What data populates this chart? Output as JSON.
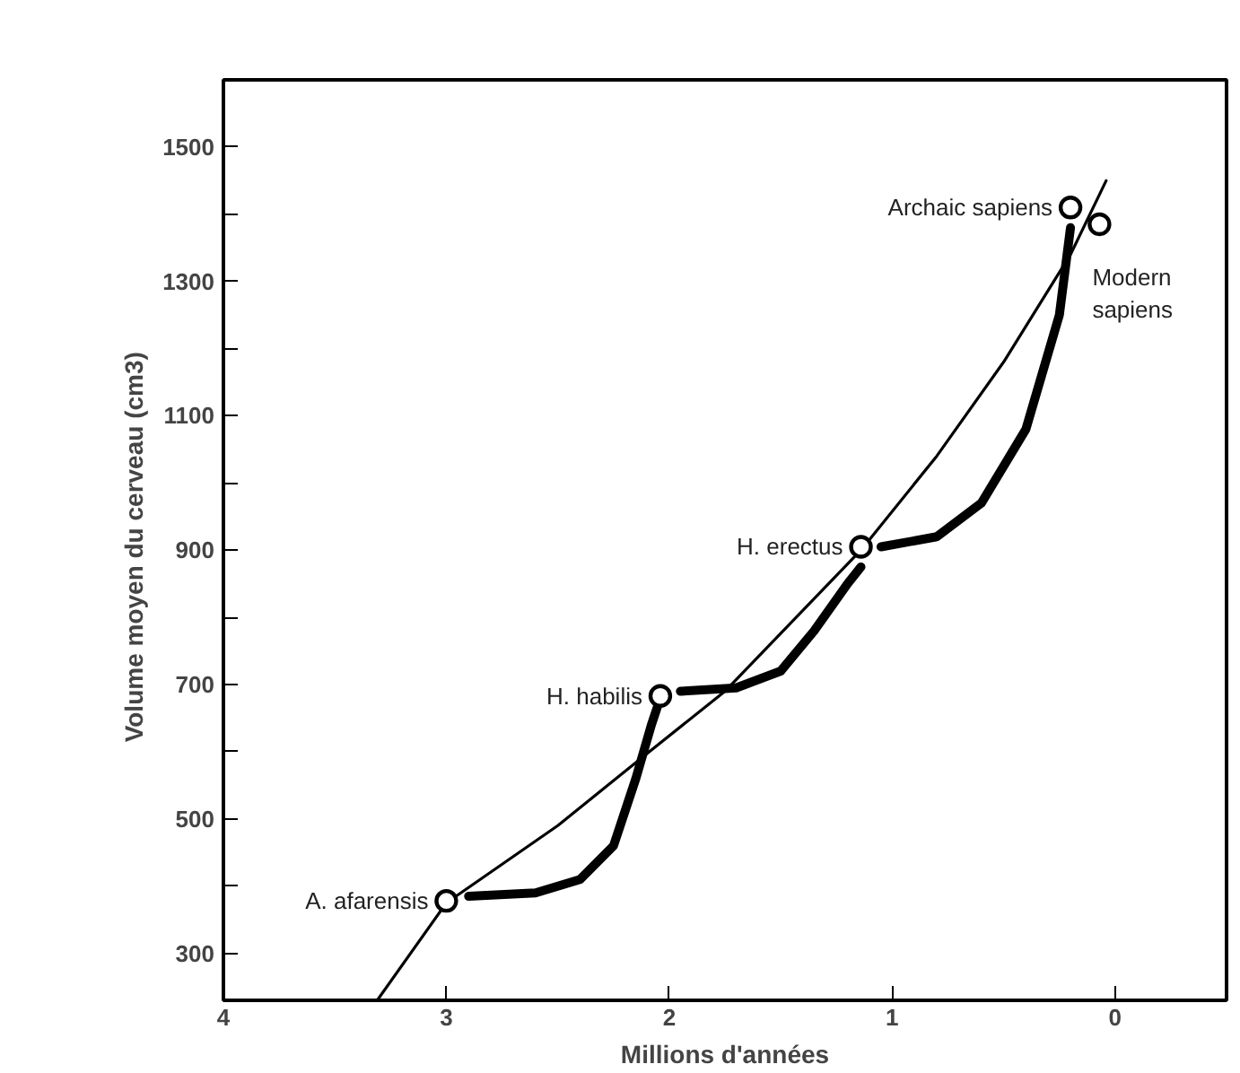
{
  "chart_data": {
    "type": "line",
    "xlabel": "Millions d'années",
    "ylabel": "Volume  moyen  du cerveau (cm3)",
    "xlim": [
      4,
      -0.5
    ],
    "xticks": [
      4,
      3,
      2,
      1,
      0
    ],
    "ylim": [
      230,
      1600
    ],
    "yticks": [
      300,
      {
        "value": 400,
        "label": null
      },
      500,
      {
        "value": 600,
        "label": null
      },
      700,
      {
        "value": 800,
        "label": null
      },
      900,
      {
        "value": 1000,
        "label": null
      },
      1100,
      {
        "value": 1200,
        "label": null
      },
      1300,
      {
        "value": 1400,
        "label": null
      },
      1500
    ],
    "grid": false,
    "series": [
      {
        "color": "#000000",
        "x": [
          3.31,
          3.0,
          2.5,
          2.09,
          1.75,
          1.14,
          0.8,
          0.5,
          0.2,
          0.04
        ],
        "values": [
          230,
          375,
          490,
          600,
          690,
          900,
          1040,
          1180,
          1340,
          1450
        ]
      },
      {
        "color": "#000000",
        "x": [
          2.9,
          2.6,
          2.4,
          2.25,
          2.15,
          2.08,
          2.05,
          null,
          1.95,
          1.7,
          1.5,
          1.35,
          1.2,
          1.14,
          null,
          1.05,
          0.8,
          0.6,
          0.4,
          0.25,
          0.2
        ],
        "values": [
          385,
          390,
          410,
          460,
          560,
          640,
          670,
          null,
          690,
          695,
          720,
          780,
          850,
          875,
          null,
          905,
          920,
          970,
          1080,
          1250,
          1380
        ]
      },
      {
        "type": "scatter",
        "marker": "circle",
        "color": "#000000",
        "x": [
          3.0,
          2.04,
          1.14,
          0.2,
          0.07
        ],
        "values": [
          378,
          683,
          905,
          1410,
          1385
        ]
      }
    ],
    "annotations": [
      {
        "text": "A. afarensis",
        "x": 3.0,
        "y": 378
      },
      {
        "text": "H. habilis",
        "x": 2.04,
        "y": 683
      },
      {
        "text": "H. erectus",
        "x": 1.14,
        "y": 905
      },
      {
        "text": "Archaic sapiens",
        "x": 0.2,
        "y": 1410
      },
      {
        "text": "Modern\nsapiens",
        "x": 0.07,
        "y": 1385
      }
    ]
  }
}
